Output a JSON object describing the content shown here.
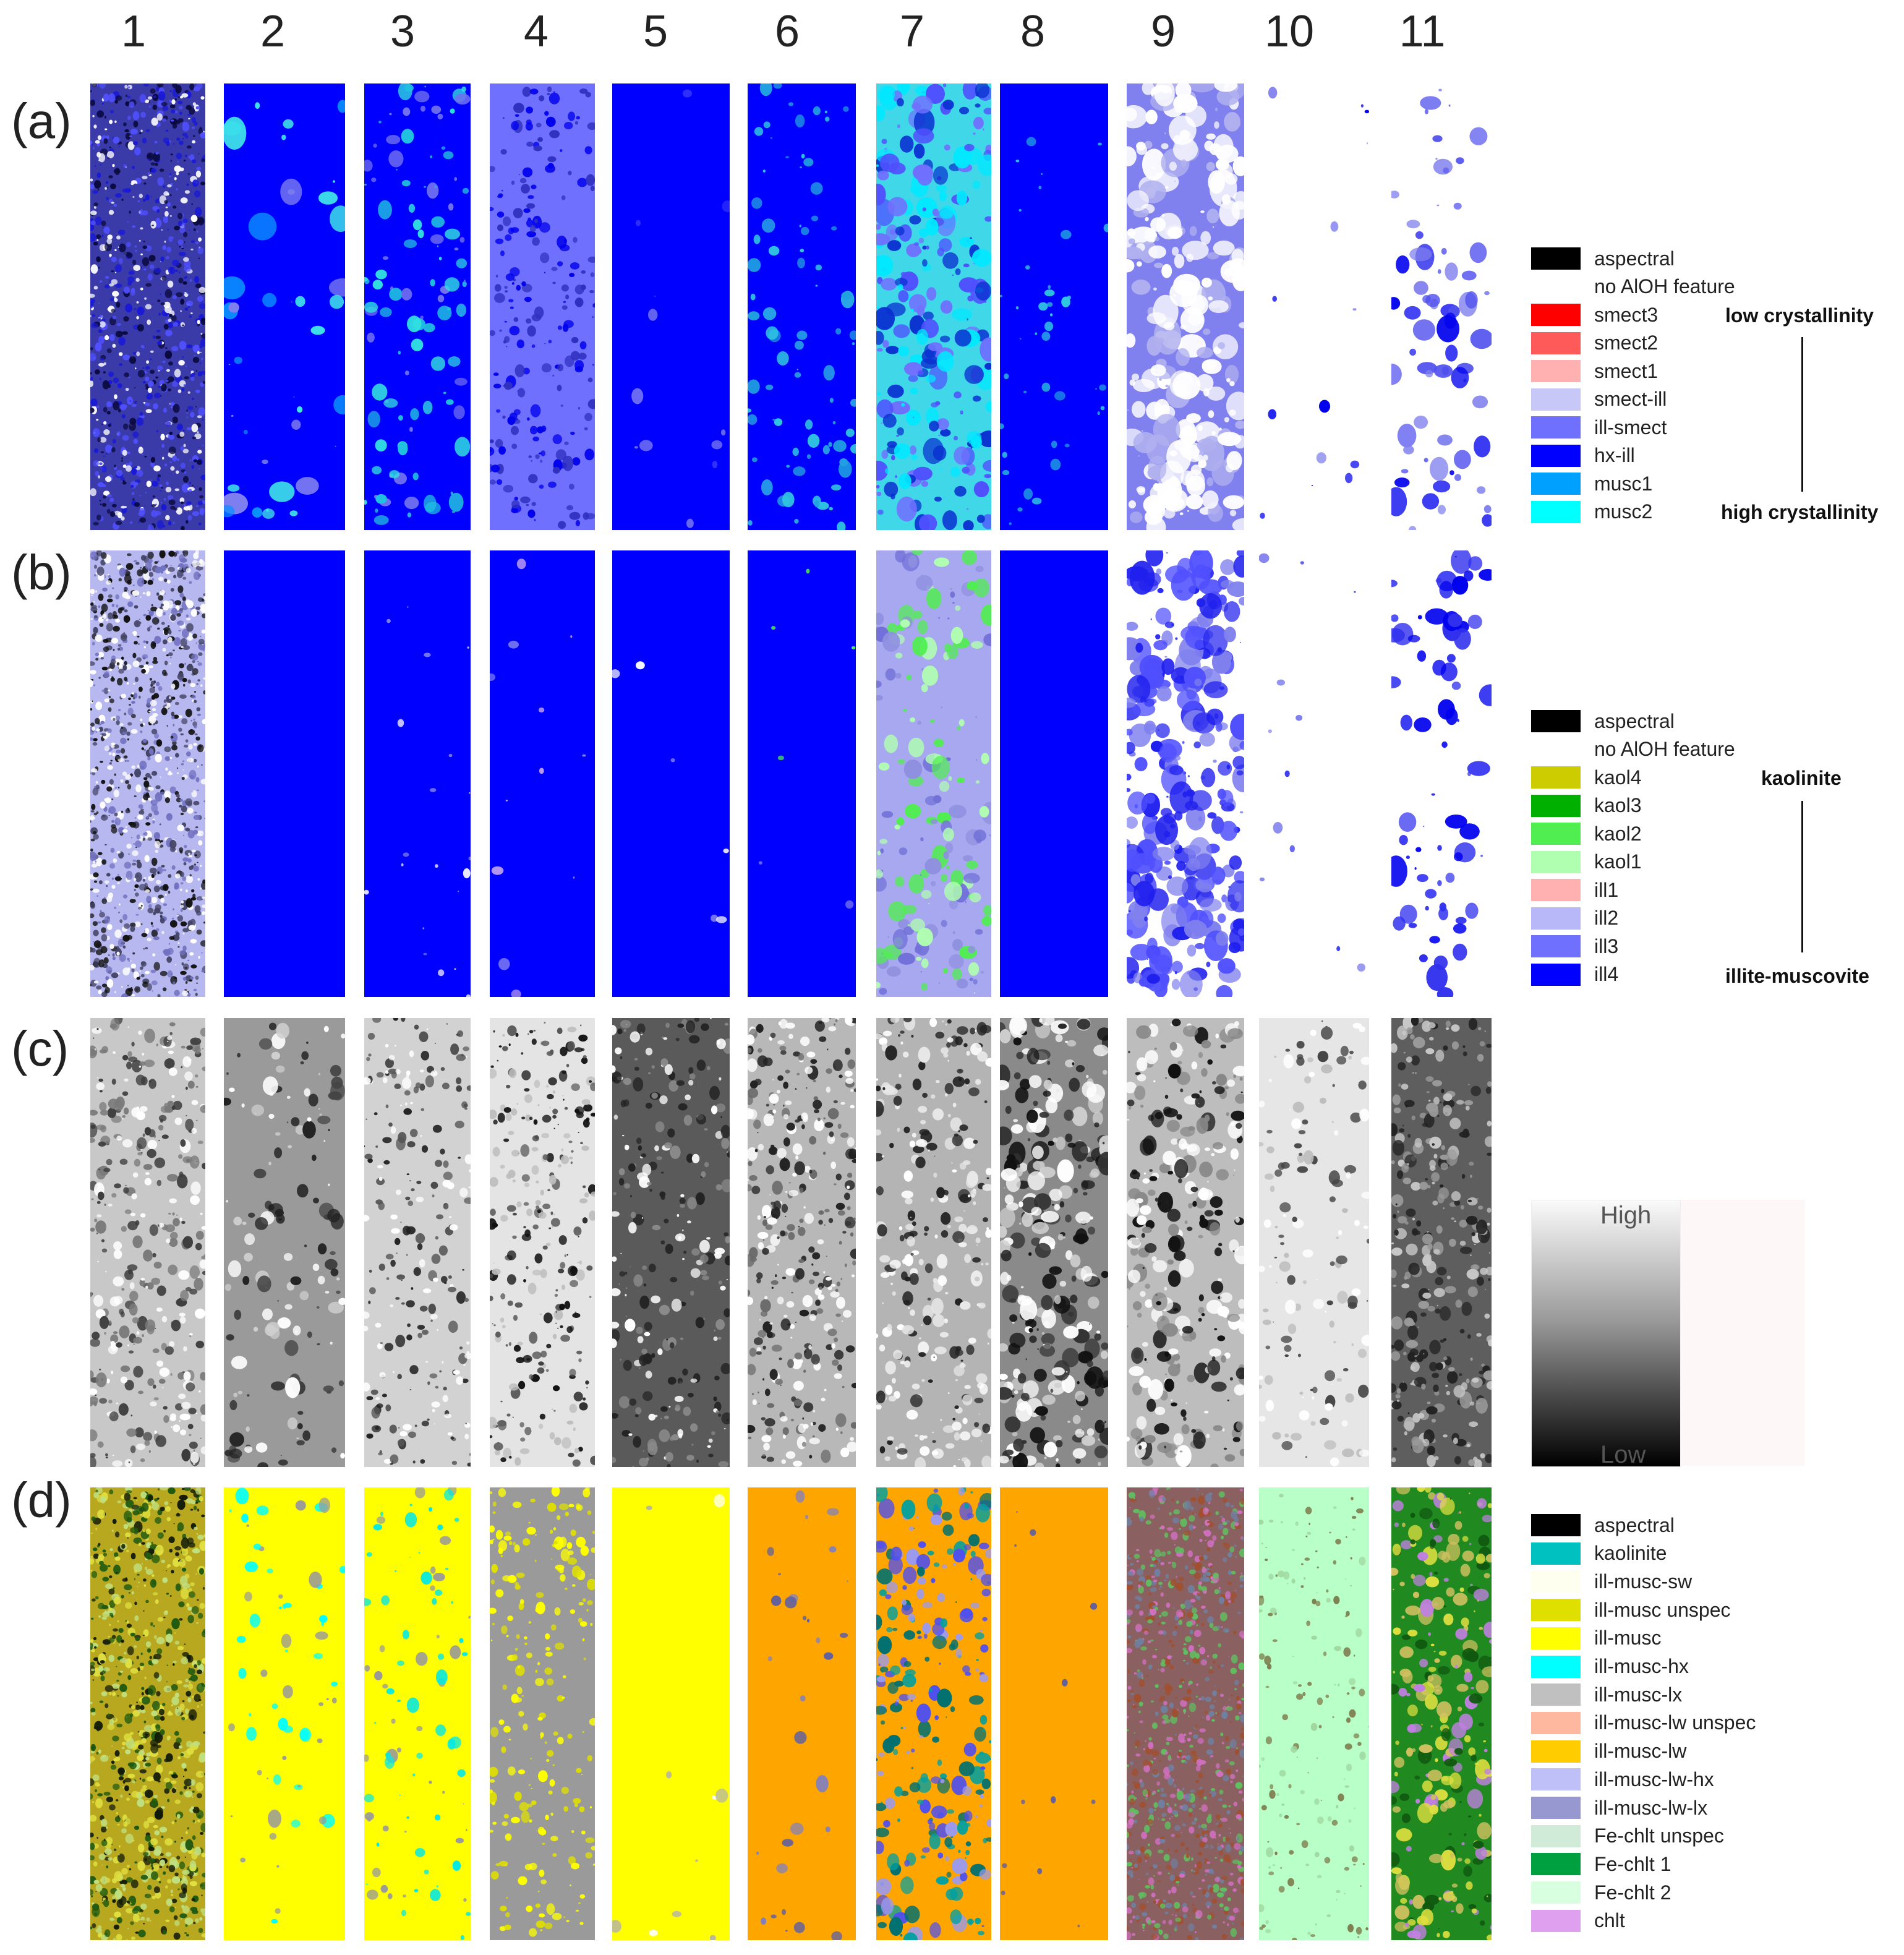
{
  "columns": [
    "1",
    "2",
    "3",
    "4",
    "5",
    "6",
    "7",
    "8",
    "9",
    "10",
    "11"
  ],
  "rows": [
    {
      "label": "(a)"
    },
    {
      "label": "(b)"
    },
    {
      "label": "(c)"
    },
    {
      "label": "(d)"
    }
  ],
  "legend_a": {
    "items": [
      {
        "label": "aspectral",
        "color": "#000000"
      },
      {
        "label": "no AlOH feature",
        "color": ""
      },
      {
        "label": "smect3",
        "color": "#ff0000"
      },
      {
        "label": "smect2",
        "color": "#ff5a5a"
      },
      {
        "label": "smect1",
        "color": "#ffb0b0"
      },
      {
        "label": "smect-ill",
        "color": "#c8c8f8"
      },
      {
        "label": "ill-smect",
        "color": "#7070ff"
      },
      {
        "label": "hx-ill",
        "color": "#0000ff"
      },
      {
        "label": "musc1",
        "color": "#00a0ff"
      },
      {
        "label": "musc2",
        "color": "#00ffff"
      }
    ],
    "top_annotation": "low crystallinity",
    "bottom_annotation": "high crystallinity"
  },
  "legend_b": {
    "items": [
      {
        "label": "aspectral",
        "color": "#000000"
      },
      {
        "label": "no AlOH feature",
        "color": ""
      },
      {
        "label": "kaol4",
        "color": "#cccc00"
      },
      {
        "label": "kaol3",
        "color": "#00b000"
      },
      {
        "label": "kaol2",
        "color": "#50ee50"
      },
      {
        "label": "kaol1",
        "color": "#b0ffb0"
      },
      {
        "label": "ill1",
        "color": "#ffb0b0"
      },
      {
        "label": "ill2",
        "color": "#b8b8f8"
      },
      {
        "label": "ill3",
        "color": "#7070ff"
      },
      {
        "label": "ill4",
        "color": "#0000ff"
      }
    ],
    "top_annotation": "kaolinite",
    "bottom_annotation": "illite-muscovite"
  },
  "legend_c": {
    "high": "High",
    "low": "Low"
  },
  "legend_d": {
    "items": [
      {
        "label": "aspectral",
        "color": "#000000"
      },
      {
        "label": "kaolinite",
        "color": "#00c0c0"
      },
      {
        "label": "ill-musc-sw",
        "color": "#fffff0"
      },
      {
        "label": "ill-musc unspec",
        "color": "#e0e000"
      },
      {
        "label": "ill-musc",
        "color": "#ffff00"
      },
      {
        "label": "ill-musc-hx",
        "color": "#00ffff"
      },
      {
        "label": "ill-musc-lx",
        "color": "#c0c0c0"
      },
      {
        "label": "ill-musc-lw unspec",
        "color": "#ffb8a0"
      },
      {
        "label": "ill-musc-lw",
        "color": "#ffcc00"
      },
      {
        "label": "ill-musc-lw-hx",
        "color": "#c0c0f8"
      },
      {
        "label": "ill-musc-lw-lx",
        "color": "#9898d0"
      },
      {
        "label": "Fe-chlt unspec",
        "color": "#d0ecd8"
      },
      {
        "label": "Fe-chlt 1",
        "color": "#00a040"
      },
      {
        "label": "Fe-chlt 2",
        "color": "#d8ffe0"
      },
      {
        "label": "chlt",
        "color": "#e0a0f0"
      }
    ]
  }
}
